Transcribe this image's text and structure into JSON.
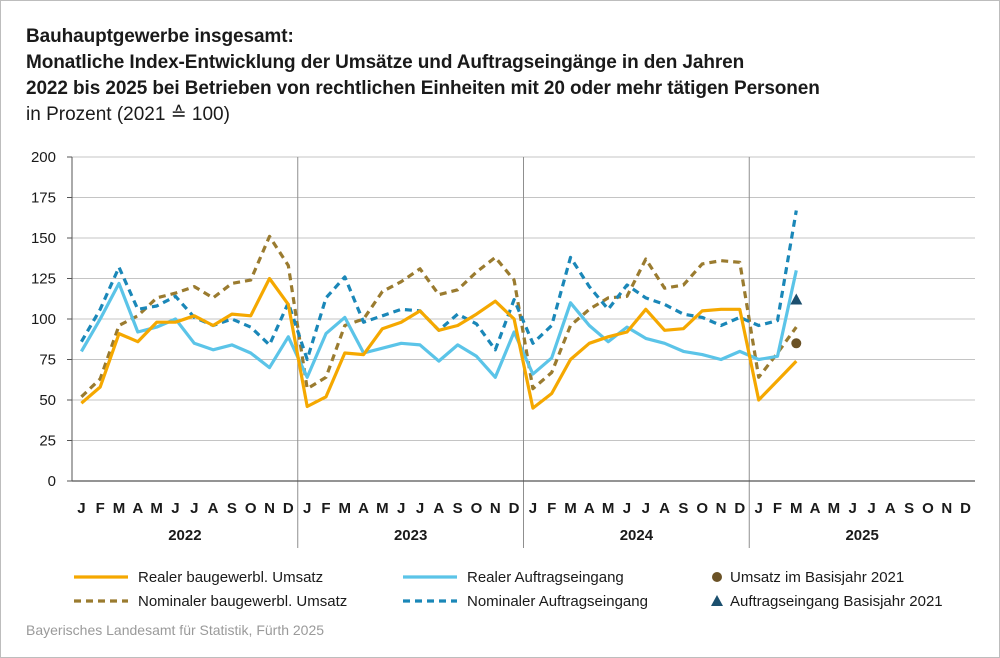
{
  "title_lines": [
    "Bauhauptgewerbe insgesamt:",
    "Monatliche Index-Entwicklung der Umsätze und Auftragseingänge in den Jahren",
    "2022 bis 2025 bei Betrieben von rechtlichen Einheiten mit 20 oder mehr tätigen Personen"
  ],
  "subtitle": "in Prozent (2021 ≙ 100)",
  "source": "Bayerisches Landesamt für Statistik, Fürth 2025",
  "chart_data": {
    "type": "line",
    "title": "Bauhauptgewerbe insgesamt: Monatliche Index-Entwicklung der Umsätze und Auftragseingänge in den Jahren 2022 bis 2025 bei Betrieben von rechtlichen Einheiten mit 20 oder mehr tätigen Personen",
    "subtitle": "in Prozent (2021 ≙ 100)",
    "ylim": [
      0,
      200
    ],
    "yticks": [
      0,
      25,
      50,
      75,
      100,
      125,
      150,
      175,
      200
    ],
    "grid": true,
    "legend_position": "bottom",
    "month_labels": [
      "J",
      "F",
      "M",
      "A",
      "M",
      "J",
      "J",
      "A",
      "S",
      "O",
      "N",
      "D"
    ],
    "years": [
      "2022",
      "2023",
      "2024",
      "2025"
    ],
    "series": [
      {
        "name": "Realer baugewerbl. Umsatz",
        "color": "#f5a800",
        "style": "solid",
        "values": [
          48,
          58,
          91,
          86,
          98,
          98,
          102,
          96,
          103,
          102,
          125,
          109,
          46,
          52,
          79,
          78,
          94,
          98,
          105,
          93,
          96,
          103,
          111,
          100,
          45,
          54,
          75,
          85,
          89,
          92,
          106,
          93,
          94,
          105,
          106,
          106,
          50,
          62,
          74
        ]
      },
      {
        "name": "Reales Auftragseingang",
        "label": "Realer Auftragseingang",
        "color": "#5bc4e8",
        "style": "solid",
        "values": [
          80,
          100,
          122,
          92,
          95,
          100,
          85,
          81,
          84,
          79,
          70,
          89,
          64,
          91,
          101,
          79,
          82,
          85,
          84,
          74,
          84,
          77,
          64,
          92,
          66,
          76,
          110,
          96,
          86,
          95,
          88,
          85,
          80,
          78,
          75,
          80,
          75,
          77,
          130
        ]
      },
      {
        "name": "Nominaler baugewerbl. Umsatz",
        "color": "#9a7b2f",
        "style": "dashed",
        "values": [
          52,
          63,
          96,
          102,
          113,
          116,
          120,
          113,
          122,
          124,
          151,
          133,
          57,
          64,
          96,
          100,
          117,
          123,
          131,
          115,
          118,
          129,
          138,
          124,
          57,
          67,
          96,
          106,
          113,
          114,
          137,
          119,
          121,
          134,
          136,
          135,
          64,
          79,
          95
        ]
      },
      {
        "name": "Nominaler Auftragseingang",
        "color": "#1a87b8",
        "style": "dashed",
        "values": [
          86,
          106,
          132,
          106,
          108,
          114,
          101,
          96,
          100,
          95,
          84,
          110,
          75,
          113,
          126,
          98,
          102,
          106,
          105,
          93,
          103,
          97,
          81,
          112,
          85,
          96,
          138,
          120,
          106,
          121,
          113,
          109,
          103,
          101,
          96,
          101,
          96,
          99,
          167
        ]
      }
    ],
    "markers": [
      {
        "name": "Umsatz im Basisjahr 2021",
        "shape": "circle",
        "color": "#6b5226",
        "month_index": 38,
        "value": 85
      },
      {
        "name": "Auftragseingang Basisjahr 2021",
        "shape": "triangle",
        "color": "#1b4f6e",
        "month_index": 38,
        "value": 112
      }
    ]
  }
}
